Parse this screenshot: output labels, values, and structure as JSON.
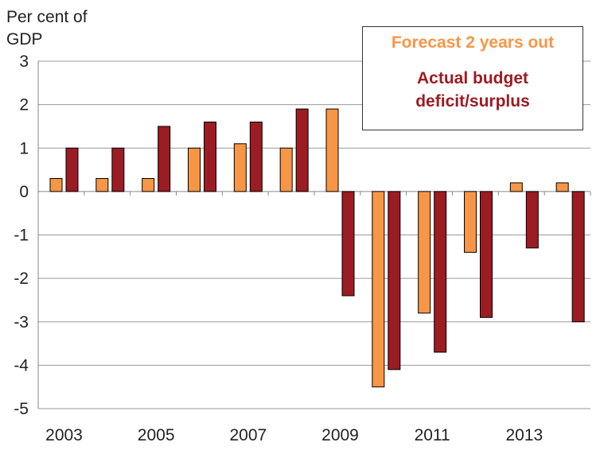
{
  "chart_data": {
    "type": "bar",
    "ylabel": "Per cent of GDP",
    "ylim": [
      -5,
      3
    ],
    "yticks": [
      3,
      2,
      1,
      0,
      -1,
      -2,
      -3,
      -4,
      -5
    ],
    "categories": [
      "2003",
      "2004",
      "2005",
      "2006",
      "2007",
      "2008",
      "2009",
      "2010",
      "2011",
      "2012",
      "2013",
      "2014"
    ],
    "xtick_labels": [
      "2003",
      "2005",
      "2007",
      "2009",
      "2011",
      "2013"
    ],
    "grid": true,
    "legend_placement": "top-right",
    "series": [
      {
        "name": "Forecast 2 years out",
        "color": "#F79646",
        "values": [
          0.3,
          0.3,
          0.3,
          1.0,
          1.1,
          1.0,
          1.9,
          -4.5,
          -2.8,
          -1.4,
          0.2,
          0.2
        ]
      },
      {
        "name": "Actual budget deficit/surplus",
        "color": "#9B1C22",
        "values": [
          1.0,
          1.0,
          1.5,
          1.6,
          1.6,
          1.9,
          -2.4,
          -4.1,
          -3.7,
          -2.9,
          -1.3,
          -3.0
        ]
      }
    ]
  }
}
